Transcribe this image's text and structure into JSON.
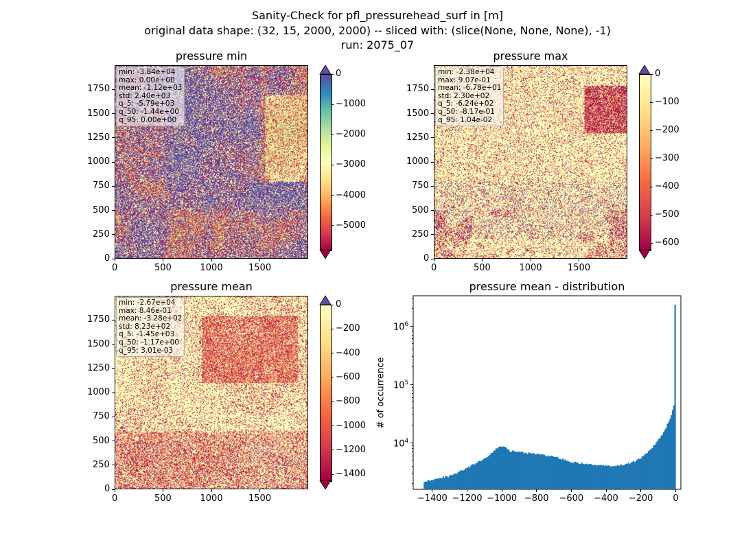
{
  "figure": {
    "title_line1": "Sanity-Check for pfl_pressurehead_surf in [m]",
    "title_line2": "original data shape: (32, 15, 2000, 2000) -- sliced with: (slice(None, None, None), -1)",
    "title_line3": "run: 2075_07"
  },
  "colors": {
    "spectral": [
      "#9e0142",
      "#d53e4f",
      "#f46d43",
      "#fdae61",
      "#fee08b",
      "#ffffbf",
      "#e6f598",
      "#abdda4",
      "#66c2a5",
      "#3288bd",
      "#5e4fa2"
    ],
    "hist_bar": "#1f77b4"
  },
  "chart_data": [
    {
      "type": "heatmap",
      "title": "pressure min",
      "x_ticks": [
        "0",
        "500",
        "1000",
        "1500"
      ],
      "y_ticks": [
        "0",
        "250",
        "500",
        "750",
        "1000",
        "1250",
        "1500",
        "1750"
      ],
      "xlim": [
        0,
        2000
      ],
      "ylim": [
        0,
        2000
      ],
      "colormap": "Spectral",
      "clim": [
        -5800,
        0
      ],
      "colorbar_ticks": [
        "0",
        "−1000",
        "−2000",
        "−3000",
        "−4000",
        "−5000"
      ],
      "colorbar_tick_values": [
        0,
        -1000,
        -2000,
        -3000,
        -4000,
        -5000
      ],
      "colorbar_extend": "both",
      "stats": [
        "min: -3.84e+04",
        "max: 0.00e+00",
        "mean: -1.12e+03",
        "std: 2.40e+03",
        "q_5: -5.79e+03",
        "q_50: -1.44e+00",
        "q_95: 0.00e+00"
      ]
    },
    {
      "type": "heatmap",
      "title": "pressure max",
      "x_ticks": [
        "0",
        "500",
        "1000",
        "1500"
      ],
      "y_ticks": [
        "0",
        "250",
        "500",
        "750",
        "1000",
        "1250",
        "1500",
        "1750"
      ],
      "xlim": [
        0,
        2000
      ],
      "ylim": [
        0,
        2000
      ],
      "colormap": "Spectral (lower half)",
      "clim": [
        -624,
        0
      ],
      "colorbar_ticks": [
        "0",
        "−100",
        "−200",
        "−300",
        "−400",
        "−500",
        "−600"
      ],
      "colorbar_tick_values": [
        0,
        -100,
        -200,
        -300,
        -400,
        -500,
        -600
      ],
      "colorbar_extend": "both",
      "stats": [
        "min: -2.38e+04",
        "max: 9.07e-01",
        "mean: -6.78e+01",
        "std: 2.30e+02",
        "q_5: -6.24e+02",
        "q_50: -8.17e-01",
        "q_95: 1.04e-02"
      ]
    },
    {
      "type": "heatmap",
      "title": "pressure mean",
      "x_ticks": [
        "0",
        "500",
        "1000",
        "1500"
      ],
      "y_ticks": [
        "0",
        "250",
        "500",
        "750",
        "1000",
        "1250",
        "1500",
        "1750"
      ],
      "xlim": [
        0,
        2000
      ],
      "ylim": [
        0,
        2000
      ],
      "colormap": "Spectral (lower half)",
      "clim": [
        -1450,
        0
      ],
      "colorbar_ticks": [
        "0",
        "−200",
        "−400",
        "−600",
        "−800",
        "−1000",
        "−1200",
        "−1400"
      ],
      "colorbar_tick_values": [
        0,
        -200,
        -400,
        -600,
        -800,
        -1000,
        -1200,
        -1400
      ],
      "colorbar_extend": "both",
      "stats": [
        "min: -2.67e+04",
        "max: 8.46e-01",
        "mean: -3.28e+02",
        "std: 8.23e+02",
        "q_5: -1.45e+03",
        "q_50: -1.17e+00",
        "q_95: 3.01e-03"
      ]
    },
    {
      "type": "bar",
      "title": "pressure mean - distribution",
      "ylabel": "# of occurrence",
      "yscale": "log",
      "ylim": [
        1600,
        3300000
      ],
      "xlim": [
        -1510,
        30
      ],
      "x_ticks": [
        "−1400",
        "−1200",
        "−1000",
        "−800",
        "−600",
        "−400",
        "−200",
        "0"
      ],
      "x_tick_values": [
        -1400,
        -1200,
        -1000,
        -800,
        -600,
        -400,
        -200,
        0
      ],
      "y_tick_values": [
        10000,
        100000,
        1000000
      ],
      "y_ticks": [
        "10^4",
        "10^5",
        "10^6"
      ],
      "bin_edges_range": [
        -1450,
        0
      ],
      "bins": 200,
      "profile_x": [
        -1450,
        -1300,
        -1200,
        -1100,
        -1020,
        -1000,
        -950,
        -800,
        -700,
        -600,
        -500,
        -400,
        -300,
        -250,
        -200,
        -150,
        -100,
        -60,
        -30,
        -10,
        -2,
        0
      ],
      "profile_y": [
        2200,
        2700,
        3700,
        5300,
        8300,
        9000,
        7200,
        6400,
        5800,
        4700,
        4300,
        4000,
        4200,
        4600,
        5500,
        7300,
        11000,
        17000,
        27000,
        43000,
        2300000,
        2300000
      ]
    }
  ]
}
